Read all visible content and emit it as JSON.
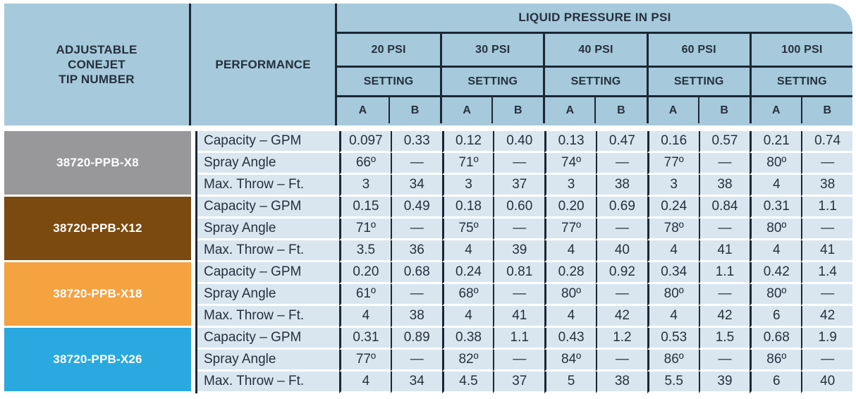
{
  "colors": {
    "header_blue": "#a6c9dc",
    "row_blue": "#d9e6f0",
    "border_dark": "#1b2734",
    "text_dark": "#26303d"
  },
  "table": {
    "tip_header": "ADJUSTABLE\nCONEJET\nTIP NUMBER",
    "performance_header": "PERFORMANCE",
    "pressure_header": "LIQUID PRESSURE IN PSI",
    "pressure_columns": [
      "20 PSI",
      "30 PSI",
      "40 PSI",
      "60 PSI",
      "100 PSI"
    ],
    "setting_label": "SETTING",
    "setting_columns": [
      "A",
      "B"
    ],
    "groups": [
      {
        "tip_number": "38720-PPB-X8",
        "color": "#98989b",
        "rows": [
          {
            "label": "Capacity – GPM",
            "values": [
              "0.097",
              "0.33",
              "0.12",
              "0.40",
              "0.13",
              "0.47",
              "0.16",
              "0.57",
              "0.21",
              "0.74"
            ]
          },
          {
            "label": "Spray Angle",
            "values": [
              "66º",
              "—",
              "71º",
              "—",
              "74º",
              "—",
              "77º",
              "—",
              "80º",
              "—"
            ]
          },
          {
            "label": "Max. Throw – Ft.",
            "values": [
              "3",
              "34",
              "3",
              "37",
              "3",
              "38",
              "3",
              "38",
              "4",
              "38"
            ]
          }
        ]
      },
      {
        "tip_number": "38720-PPB-X12",
        "color": "#7b4a10",
        "rows": [
          {
            "label": "Capacity – GPM",
            "values": [
              "0.15",
              "0.49",
              "0.18",
              "0.60",
              "0.20",
              "0.69",
              "0.24",
              "0.84",
              "0.31",
              "1.1"
            ]
          },
          {
            "label": "Spray Angle",
            "values": [
              "71º",
              "—",
              "75º",
              "—",
              "77º",
              "—",
              "78º",
              "—",
              "80º",
              "—"
            ]
          },
          {
            "label": "Max. Throw – Ft.",
            "values": [
              "3.5",
              "36",
              "4",
              "39",
              "4",
              "40",
              "4",
              "41",
              "4",
              "41"
            ]
          }
        ]
      },
      {
        "tip_number": "38720-PPB-X18",
        "color": "#f5a240",
        "rows": [
          {
            "label": "Capacity – GPM",
            "values": [
              "0.20",
              "0.68",
              "0.24",
              "0.81",
              "0.28",
              "0.92",
              "0.34",
              "1.1",
              "0.42",
              "1.4"
            ]
          },
          {
            "label": "Spray Angle",
            "values": [
              "61º",
              "—",
              "68º",
              "—",
              "80º",
              "—",
              "80º",
              "—",
              "80º",
              "—"
            ]
          },
          {
            "label": "Max. Throw – Ft.",
            "values": [
              "4",
              "38",
              "4",
              "41",
              "4",
              "42",
              "4",
              "42",
              "6",
              "42"
            ]
          }
        ]
      },
      {
        "tip_number": "38720-PPB-X26",
        "color": "#2aa9e0",
        "rows": [
          {
            "label": "Capacity – GPM",
            "values": [
              "0.31",
              "0.89",
              "0.38",
              "1.1",
              "0.43",
              "1.2",
              "0.53",
              "1.5",
              "0.68",
              "1.9"
            ]
          },
          {
            "label": "Spray Angle",
            "values": [
              "77º",
              "—",
              "82º",
              "—",
              "84º",
              "—",
              "86º",
              "—",
              "86º",
              "—"
            ]
          },
          {
            "label": "Max. Throw – Ft.",
            "values": [
              "4",
              "34",
              "4.5",
              "37",
              "5",
              "38",
              "5.5",
              "39",
              "6",
              "40"
            ]
          }
        ]
      }
    ]
  }
}
